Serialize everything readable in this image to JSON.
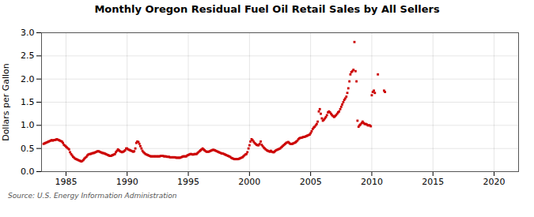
{
  "chart_data": {
    "type": "scatter",
    "title": "Monthly Oregon Residual Fuel Oil Retail Sales by All Sellers",
    "ylabel": "Dollars per Gallon",
    "source": "Source: U.S. Energy Information Administration",
    "color": "#cc0000",
    "marker": "square",
    "grid": true,
    "xlim": [
      1983,
      2022
    ],
    "ylim": [
      0.0,
      3.0
    ],
    "xticks": [
      1985,
      1990,
      1995,
      2000,
      2005,
      2010,
      2015,
      2020
    ],
    "yticks": [
      {
        "value": 0.0,
        "label": "0.0"
      },
      0.5,
      {
        "value": 1.0,
        "label": "1.0"
      },
      1.5,
      {
        "value": 2.0,
        "label": "2.0"
      },
      2.5,
      {
        "value": 3.0,
        "label": "3.0"
      }
    ],
    "x": [
      1983.17,
      1983.25,
      1983.33,
      1983.42,
      1983.5,
      1983.58,
      1983.67,
      1983.75,
      1983.83,
      1983.92,
      1984.0,
      1984.08,
      1984.17,
      1984.25,
      1984.33,
      1984.42,
      1984.5,
      1984.58,
      1984.67,
      1984.75,
      1984.83,
      1984.92,
      1985.0,
      1985.08,
      1985.17,
      1985.25,
      1985.33,
      1985.42,
      1985.5,
      1985.58,
      1985.67,
      1985.75,
      1985.83,
      1985.92,
      1986.0,
      1986.08,
      1986.17,
      1986.25,
      1986.33,
      1986.42,
      1986.5,
      1986.58,
      1986.67,
      1986.75,
      1986.83,
      1986.92,
      1987.0,
      1987.08,
      1987.17,
      1987.25,
      1987.33,
      1987.42,
      1987.5,
      1987.58,
      1987.67,
      1987.75,
      1987.83,
      1987.92,
      1988.0,
      1988.08,
      1988.17,
      1988.25,
      1988.33,
      1988.42,
      1988.5,
      1988.58,
      1988.67,
      1988.75,
      1988.83,
      1988.92,
      1989.0,
      1989.08,
      1989.17,
      1989.25,
      1989.33,
      1989.42,
      1989.5,
      1989.58,
      1989.67,
      1989.75,
      1989.83,
      1989.92,
      1990.0,
      1990.08,
      1990.17,
      1990.25,
      1990.33,
      1990.42,
      1990.5,
      1990.58,
      1990.67,
      1990.75,
      1990.83,
      1990.92,
      1991.0,
      1991.08,
      1991.17,
      1991.25,
      1991.33,
      1991.42,
      1991.5,
      1991.58,
      1991.67,
      1991.75,
      1991.83,
      1991.92,
      1992.0,
      1992.08,
      1992.17,
      1992.25,
      1992.33,
      1992.42,
      1992.5,
      1992.58,
      1992.67,
      1992.75,
      1992.83,
      1992.92,
      1993.0,
      1993.08,
      1993.17,
      1993.25,
      1993.33,
      1993.42,
      1993.5,
      1993.58,
      1993.67,
      1993.75,
      1993.83,
      1993.92,
      1994.0,
      1994.08,
      1994.17,
      1994.25,
      1994.33,
      1994.42,
      1994.5,
      1994.58,
      1994.67,
      1994.75,
      1994.83,
      1994.92,
      1995.0,
      1995.08,
      1995.17,
      1995.25,
      1995.33,
      1995.42,
      1995.5,
      1995.58,
      1995.67,
      1995.75,
      1995.83,
      1995.92,
      1996.0,
      1996.08,
      1996.17,
      1996.25,
      1996.33,
      1996.42,
      1996.5,
      1996.58,
      1996.67,
      1996.75,
      1996.83,
      1996.92,
      1997.0,
      1997.08,
      1997.17,
      1997.25,
      1997.33,
      1997.42,
      1997.5,
      1997.58,
      1997.67,
      1997.75,
      1997.83,
      1997.92,
      1998.0,
      1998.08,
      1998.17,
      1998.25,
      1998.33,
      1998.42,
      1998.5,
      1998.58,
      1998.67,
      1998.75,
      1998.83,
      1998.92,
      1999.0,
      1999.08,
      1999.17,
      1999.25,
      1999.33,
      1999.42,
      1999.5,
      1999.58,
      1999.67,
      1999.75,
      1999.83,
      1999.92,
      2000.0,
      2000.08,
      2000.17,
      2000.25,
      2000.33,
      2000.42,
      2000.5,
      2000.58,
      2000.67,
      2000.75,
      2000.83,
      2000.92,
      2001.0,
      2001.08,
      2001.17,
      2001.25,
      2001.33,
      2001.42,
      2001.5,
      2001.58,
      2001.67,
      2001.75,
      2001.83,
      2001.92,
      2002.0,
      2002.08,
      2002.17,
      2002.25,
      2002.33,
      2002.42,
      2002.5,
      2002.58,
      2002.67,
      2002.75,
      2002.83,
      2002.92,
      2003.0,
      2003.08,
      2003.17,
      2003.25,
      2003.33,
      2003.42,
      2003.5,
      2003.58,
      2003.67,
      2003.75,
      2003.83,
      2003.92,
      2004.0,
      2004.08,
      2004.17,
      2004.25,
      2004.33,
      2004.42,
      2004.5,
      2004.58,
      2004.67,
      2004.75,
      2004.83,
      2004.92,
      2005.0,
      2005.08,
      2005.17,
      2005.25,
      2005.33,
      2005.42,
      2005.5,
      2005.58,
      2005.67,
      2005.75,
      2005.83,
      2005.92,
      2006.0,
      2006.08,
      2006.17,
      2006.25,
      2006.33,
      2006.42,
      2006.5,
      2006.58,
      2006.67,
      2006.75,
      2006.83,
      2006.92,
      2007.0,
      2007.08,
      2007.17,
      2007.25,
      2007.33,
      2007.42,
      2007.5,
      2007.58,
      2007.67,
      2007.75,
      2007.83,
      2007.92,
      2008.0,
      2008.08,
      2008.17,
      2008.25,
      2008.33,
      2008.42,
      2008.5,
      2008.58,
      2008.67,
      2008.75,
      2008.83,
      2008.92,
      2009.0,
      2009.08,
      2009.17,
      2009.25,
      2009.33,
      2009.42,
      2009.5,
      2009.58,
      2009.67,
      2009.75,
      2009.83,
      2009.92,
      2010.0,
      2010.08,
      2010.17,
      2010.25,
      2010.5,
      2011.0,
      2011.08
    ],
    "values": [
      0.6,
      0.61,
      0.62,
      0.63,
      0.64,
      0.65,
      0.66,
      0.67,
      0.68,
      0.67,
      0.68,
      0.68,
      0.69,
      0.7,
      0.69,
      0.68,
      0.67,
      0.66,
      0.65,
      0.62,
      0.58,
      0.56,
      0.54,
      0.52,
      0.5,
      0.48,
      0.42,
      0.38,
      0.35,
      0.32,
      0.3,
      0.28,
      0.27,
      0.26,
      0.25,
      0.24,
      0.23,
      0.22,
      0.23,
      0.25,
      0.28,
      0.3,
      0.32,
      0.35,
      0.37,
      0.38,
      0.38,
      0.39,
      0.4,
      0.4,
      0.41,
      0.42,
      0.43,
      0.44,
      0.44,
      0.43,
      0.42,
      0.41,
      0.4,
      0.4,
      0.39,
      0.38,
      0.37,
      0.36,
      0.35,
      0.34,
      0.34,
      0.35,
      0.36,
      0.37,
      0.38,
      0.42,
      0.45,
      0.48,
      0.46,
      0.44,
      0.43,
      0.42,
      0.43,
      0.44,
      0.46,
      0.5,
      0.5,
      0.48,
      0.47,
      0.46,
      0.45,
      0.44,
      0.43,
      0.44,
      0.5,
      0.62,
      0.65,
      0.64,
      0.6,
      0.55,
      0.5,
      0.45,
      0.42,
      0.4,
      0.38,
      0.37,
      0.36,
      0.35,
      0.34,
      0.33,
      0.33,
      0.33,
      0.33,
      0.33,
      0.33,
      0.33,
      0.33,
      0.33,
      0.33,
      0.34,
      0.34,
      0.34,
      0.33,
      0.33,
      0.33,
      0.32,
      0.32,
      0.32,
      0.31,
      0.31,
      0.31,
      0.31,
      0.31,
      0.31,
      0.3,
      0.3,
      0.3,
      0.3,
      0.3,
      0.31,
      0.32,
      0.33,
      0.33,
      0.33,
      0.33,
      0.35,
      0.36,
      0.37,
      0.38,
      0.38,
      0.37,
      0.37,
      0.38,
      0.38,
      0.38,
      0.4,
      0.42,
      0.44,
      0.46,
      0.48,
      0.5,
      0.48,
      0.46,
      0.44,
      0.43,
      0.43,
      0.43,
      0.44,
      0.45,
      0.46,
      0.47,
      0.47,
      0.46,
      0.45,
      0.44,
      0.43,
      0.42,
      0.41,
      0.4,
      0.39,
      0.39,
      0.38,
      0.37,
      0.36,
      0.35,
      0.34,
      0.33,
      0.32,
      0.3,
      0.29,
      0.28,
      0.27,
      0.27,
      0.27,
      0.27,
      0.27,
      0.28,
      0.29,
      0.3,
      0.31,
      0.33,
      0.35,
      0.37,
      0.38,
      0.42,
      0.5,
      0.57,
      0.65,
      0.7,
      0.68,
      0.65,
      0.62,
      0.6,
      0.58,
      0.57,
      0.57,
      0.6,
      0.65,
      0.58,
      0.55,
      0.52,
      0.5,
      0.48,
      0.46,
      0.45,
      0.44,
      0.43,
      0.45,
      0.43,
      0.42,
      0.42,
      0.44,
      0.46,
      0.47,
      0.48,
      0.49,
      0.5,
      0.52,
      0.54,
      0.56,
      0.58,
      0.6,
      0.62,
      0.63,
      0.64,
      0.62,
      0.6,
      0.6,
      0.6,
      0.61,
      0.62,
      0.63,
      0.65,
      0.67,
      0.7,
      0.72,
      0.73,
      0.73,
      0.74,
      0.75,
      0.75,
      0.76,
      0.77,
      0.78,
      0.79,
      0.8,
      0.83,
      0.87,
      0.92,
      0.95,
      0.97,
      1.0,
      1.03,
      1.08,
      1.3,
      1.35,
      1.25,
      1.15,
      1.1,
      1.12,
      1.15,
      1.18,
      1.22,
      1.28,
      1.3,
      1.28,
      1.25,
      1.22,
      1.2,
      1.18,
      1.2,
      1.22,
      1.25,
      1.28,
      1.3,
      1.35,
      1.4,
      1.45,
      1.5,
      1.55,
      1.58,
      1.62,
      1.7,
      1.8,
      1.95,
      2.1,
      2.15,
      2.17,
      2.2,
      2.8,
      2.17,
      1.95,
      1.1,
      0.97,
      1.0,
      1.02,
      1.05,
      1.08,
      1.05,
      1.03,
      1.03,
      1.02,
      1.0,
      1.0,
      1.0,
      0.98,
      1.65,
      1.72,
      1.75,
      1.7,
      2.1,
      1.75,
      1.72
    ]
  }
}
